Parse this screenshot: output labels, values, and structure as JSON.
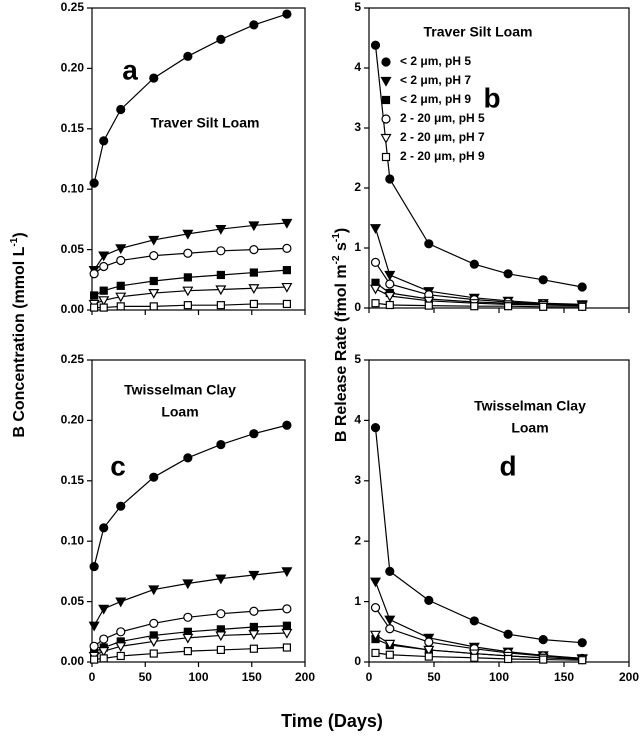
{
  "xlabel": "Time (Days)",
  "ylabel_left": [
    {
      "text": "B Concentration (mmol L"
    },
    {
      "text": "-1",
      "sup": true
    },
    {
      "text": ")"
    }
  ],
  "ylabel_right": [
    {
      "text": "B Release Rate (fmol m"
    },
    {
      "text": "-2",
      "sup": true
    },
    {
      "text": " s"
    },
    {
      "text": "-1",
      "sup": true
    },
    {
      "text": ")"
    }
  ],
  "chart_data": [
    {
      "type": "line",
      "panel_label": "a",
      "annotation": [
        "Traver Silt Loam"
      ],
      "x": [
        2,
        11,
        27,
        58,
        90,
        121,
        152,
        183
      ],
      "xlim": [
        0,
        200
      ],
      "xticks": [
        0,
        50,
        100,
        150,
        200
      ],
      "xtick_labels": false,
      "ylim": [
        0,
        0.25
      ],
      "yticks": [
        {
          "value": 0,
          "label": "0.00"
        },
        0.05,
        {
          "value": 0.1,
          "label": "0.10"
        },
        0.15,
        {
          "value": 0.2,
          "label": "0.20"
        },
        0.25
      ],
      "series": [
        {
          "marker": "circle",
          "filled": true,
          "color": "#000000",
          "values": [
            0.105,
            0.14,
            0.166,
            0.192,
            0.21,
            0.224,
            0.236,
            0.245
          ]
        },
        {
          "marker": "triangle",
          "filled": true,
          "color": "#000000",
          "values": [
            0.033,
            0.045,
            0.051,
            0.058,
            0.063,
            0.067,
            0.07,
            0.072
          ]
        },
        {
          "marker": "square",
          "filled": true,
          "color": "#000000",
          "values": [
            0.012,
            0.016,
            0.02,
            0.024,
            0.027,
            0.029,
            0.031,
            0.033
          ]
        },
        {
          "marker": "circle",
          "filled": false,
          "color": "#000000",
          "values": [
            0.03,
            0.036,
            0.041,
            0.045,
            0.047,
            0.049,
            0.05,
            0.051
          ]
        },
        {
          "marker": "triangle",
          "filled": false,
          "color": "#000000",
          "values": [
            0.005,
            0.008,
            0.011,
            0.014,
            0.016,
            0.017,
            0.018,
            0.019
          ]
        },
        {
          "marker": "square",
          "filled": false,
          "color": "#000000",
          "values": [
            0.002,
            0.002,
            0.003,
            0.003,
            0.004,
            0.004,
            0.005,
            0.005
          ]
        }
      ]
    },
    {
      "type": "line",
      "panel_label": "b",
      "annotation": [
        "Traver Silt Loam"
      ],
      "legend": "upper right",
      "x": [
        5,
        16,
        46,
        81,
        107,
        134,
        164
      ],
      "xlim": [
        0,
        200
      ],
      "xticks": [
        0,
        50,
        100,
        150,
        200
      ],
      "xtick_labels": false,
      "ylim": [
        0,
        5
      ],
      "yticks": [
        0,
        1,
        2,
        3,
        4,
        5
      ],
      "series": [
        {
          "name": "< 2 μm, pH 5",
          "marker": "circle",
          "filled": true,
          "color": "#000000",
          "values": [
            4.38,
            2.15,
            1.07,
            0.73,
            0.57,
            0.47,
            0.35
          ]
        },
        {
          "name": "< 2 μm, pH 7",
          "marker": "triangle",
          "filled": true,
          "color": "#000000",
          "values": [
            1.33,
            0.55,
            0.28,
            0.17,
            0.12,
            0.08,
            0.06
          ]
        },
        {
          "name": "< 2 μm, pH 9",
          "marker": "square",
          "filled": true,
          "color": "#000000",
          "values": [
            0.42,
            0.25,
            0.15,
            0.1,
            0.08,
            0.06,
            0.05
          ]
        },
        {
          "name": "2 - 20 μm, pH 5",
          "marker": "circle",
          "filled": false,
          "color": "#000000",
          "values": [
            0.76,
            0.4,
            0.22,
            0.14,
            0.1,
            0.07,
            0.05
          ]
        },
        {
          "name": "2 - 20 μm, pH 7",
          "marker": "triangle",
          "filled": false,
          "color": "#000000",
          "values": [
            0.32,
            0.2,
            0.12,
            0.08,
            0.06,
            0.05,
            0.04
          ]
        },
        {
          "name": "2 - 20 μm, pH 9",
          "marker": "square",
          "filled": false,
          "color": "#000000",
          "values": [
            0.08,
            0.05,
            0.04,
            0.03,
            0.03,
            0.02,
            0.02
          ]
        }
      ]
    },
    {
      "type": "line",
      "panel_label": "c",
      "annotation": [
        "Twisselman Clay",
        "Loam"
      ],
      "x": [
        2,
        11,
        27,
        58,
        90,
        121,
        152,
        183
      ],
      "xlim": [
        0,
        200
      ],
      "xticks": [
        0,
        50,
        100,
        150,
        200
      ],
      "ylim": [
        0,
        0.25
      ],
      "yticks": [
        {
          "value": 0,
          "label": "0.00"
        },
        0.05,
        {
          "value": 0.1,
          "label": "0.10"
        },
        0.15,
        {
          "value": 0.2,
          "label": "0.20"
        },
        0.25
      ],
      "series": [
        {
          "marker": "circle",
          "filled": true,
          "color": "#000000",
          "values": [
            0.079,
            0.111,
            0.129,
            0.153,
            0.169,
            0.18,
            0.189,
            0.196
          ]
        },
        {
          "marker": "triangle",
          "filled": true,
          "color": "#000000",
          "values": [
            0.03,
            0.044,
            0.05,
            0.06,
            0.065,
            0.069,
            0.072,
            0.075
          ]
        },
        {
          "marker": "square",
          "filled": true,
          "color": "#000000",
          "values": [
            0.008,
            0.012,
            0.017,
            0.022,
            0.025,
            0.027,
            0.029,
            0.03
          ]
        },
        {
          "marker": "circle",
          "filled": false,
          "color": "#000000",
          "values": [
            0.013,
            0.019,
            0.025,
            0.032,
            0.037,
            0.04,
            0.042,
            0.044
          ]
        },
        {
          "marker": "triangle",
          "filled": false,
          "color": "#000000",
          "values": [
            0.005,
            0.009,
            0.013,
            0.017,
            0.02,
            0.022,
            0.023,
            0.024
          ]
        },
        {
          "marker": "square",
          "filled": false,
          "color": "#000000",
          "values": [
            0.002,
            0.003,
            0.005,
            0.007,
            0.009,
            0.01,
            0.011,
            0.012
          ]
        }
      ]
    },
    {
      "type": "line",
      "panel_label": "d",
      "annotation": [
        "Twisselman Clay",
        "Loam"
      ],
      "x": [
        5,
        16,
        46,
        81,
        107,
        134,
        164
      ],
      "xlim": [
        0,
        200
      ],
      "xticks": [
        0,
        50,
        100,
        150,
        200
      ],
      "ylim": [
        0,
        5
      ],
      "yticks": [
        0,
        1,
        2,
        3,
        4,
        5
      ],
      "series": [
        {
          "marker": "circle",
          "filled": true,
          "color": "#000000",
          "values": [
            3.88,
            1.5,
            1.02,
            0.68,
            0.46,
            0.37,
            0.32
          ]
        },
        {
          "marker": "triangle",
          "filled": true,
          "color": "#000000",
          "values": [
            1.33,
            0.7,
            0.4,
            0.25,
            0.17,
            0.11,
            0.06
          ]
        },
        {
          "marker": "square",
          "filled": true,
          "color": "#000000",
          "values": [
            0.38,
            0.28,
            0.2,
            0.14,
            0.1,
            0.07,
            0.05
          ]
        },
        {
          "marker": "circle",
          "filled": false,
          "color": "#000000",
          "values": [
            0.9,
            0.55,
            0.33,
            0.22,
            0.15,
            0.1,
            0.06
          ]
        },
        {
          "marker": "triangle",
          "filled": false,
          "color": "#000000",
          "values": [
            0.45,
            0.3,
            0.2,
            0.14,
            0.1,
            0.07,
            0.05
          ]
        },
        {
          "marker": "square",
          "filled": false,
          "color": "#000000",
          "values": [
            0.15,
            0.12,
            0.09,
            0.07,
            0.05,
            0.04,
            0.03
          ]
        }
      ]
    }
  ]
}
